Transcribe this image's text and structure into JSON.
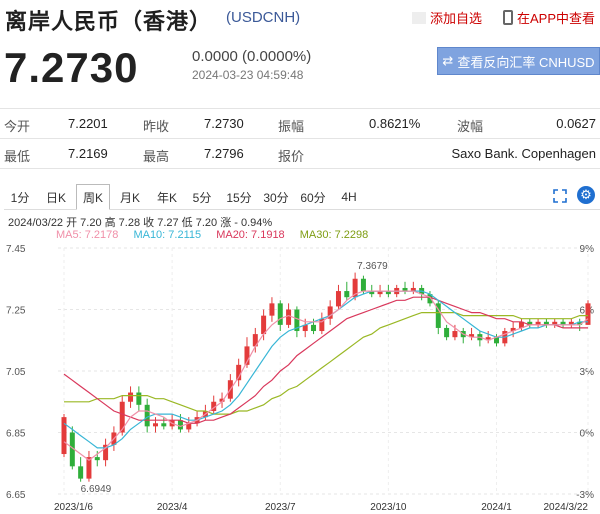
{
  "header": {
    "title": "离岸人民币（香港）",
    "code": "(USDCNH)",
    "add_favorite": "添加自选",
    "app_link": "在APP中查看",
    "price": "7.2730",
    "change": "0.0000 (0.0000%)",
    "time": "2024-03-23 04:59:48",
    "reverse_button": "查看反向汇率 CNHUSD"
  },
  "stats": {
    "row1": [
      {
        "label": "今开",
        "value": "7.2201"
      },
      {
        "label": "昨收",
        "value": "7.2730"
      },
      {
        "label": "振幅",
        "value": "0.8621%"
      },
      {
        "label": "波幅",
        "value": "0.0627"
      }
    ],
    "row2": [
      {
        "label": "最低",
        "value": "7.2169"
      },
      {
        "label": "最高",
        "value": "7.2796"
      },
      {
        "label": "报价",
        "value": "Saxo Bank. Copenhagen"
      }
    ]
  },
  "tabs": [
    "1分",
    "日K",
    "周K",
    "月K",
    "年K",
    "5分",
    "15分",
    "30分",
    "60分",
    "4H"
  ],
  "active_tab": "周K",
  "info": {
    "ohlc": "2024/03/22  开 7.20 高 7.28 收 7.27 低 7.20 涨 - 0.94%",
    "ma5": "MA5: 7.2178",
    "ma10": "MA10: 7.2115",
    "ma20": "MA20: 7.1918",
    "ma30": "MA30: 7.2298"
  },
  "colors": {
    "up": "#e33b3b",
    "down": "#2fae3a",
    "ma5": "#f08fa8",
    "ma10": "#38b6d6",
    "ma20": "#d9385c",
    "ma30": "#9ab825",
    "accent": "#7fa3df"
  },
  "chart_data": {
    "type": "candlestick",
    "ylim": [
      6.65,
      7.45
    ],
    "y_ticks": [
      "7.45",
      "7.25",
      "7.05",
      "6.85",
      "6.65"
    ],
    "y_ticks_right": [
      "9%",
      "6%",
      "3%",
      "0%",
      "-3%"
    ],
    "x_ticks": [
      {
        "label": "2023/1/6",
        "index": 0
      },
      {
        "label": "2023/4",
        "index": 13
      },
      {
        "label": "2023/7",
        "index": 26
      },
      {
        "label": "2023/10",
        "index": 39
      },
      {
        "label": "2024/1",
        "index": 52
      },
      {
        "label": "2024/3/22",
        "index": 63
      }
    ],
    "annotations": [
      {
        "text": "7.3679",
        "index": 35,
        "value": 7.3679
      },
      {
        "text": "6.6949",
        "index": 2,
        "value": 6.6949
      }
    ],
    "candles": [
      [
        6.78,
        6.9,
        6.91,
        6.77
      ],
      [
        6.85,
        6.74,
        6.87,
        6.73
      ],
      [
        6.74,
        6.7,
        6.77,
        6.69
      ],
      [
        6.7,
        6.77,
        6.79,
        6.69
      ],
      [
        6.77,
        6.76,
        6.79,
        6.74
      ],
      [
        6.76,
        6.81,
        6.83,
        6.74
      ],
      [
        6.81,
        6.85,
        6.87,
        6.79
      ],
      [
        6.85,
        6.95,
        6.97,
        6.84
      ],
      [
        6.95,
        6.98,
        7.0,
        6.93
      ],
      [
        6.98,
        6.94,
        7.0,
        6.92
      ],
      [
        6.94,
        6.87,
        6.96,
        6.85
      ],
      [
        6.87,
        6.88,
        6.9,
        6.85
      ],
      [
        6.88,
        6.87,
        6.9,
        6.86
      ],
      [
        6.87,
        6.89,
        6.91,
        6.86
      ],
      [
        6.89,
        6.86,
        6.91,
        6.85
      ],
      [
        6.86,
        6.88,
        6.9,
        6.85
      ],
      [
        6.88,
        6.9,
        6.92,
        6.87
      ],
      [
        6.9,
        6.92,
        6.94,
        6.89
      ],
      [
        6.92,
        6.95,
        6.97,
        6.91
      ],
      [
        6.95,
        6.96,
        6.98,
        6.93
      ],
      [
        6.96,
        7.02,
        7.04,
        6.95
      ],
      [
        7.02,
        7.07,
        7.09,
        7.0
      ],
      [
        7.07,
        7.13,
        7.16,
        7.06
      ],
      [
        7.13,
        7.17,
        7.19,
        7.11
      ],
      [
        7.17,
        7.23,
        7.25,
        7.15
      ],
      [
        7.23,
        7.27,
        7.29,
        7.21
      ],
      [
        7.27,
        7.2,
        7.28,
        7.18
      ],
      [
        7.2,
        7.25,
        7.27,
        7.19
      ],
      [
        7.25,
        7.18,
        7.26,
        7.16
      ],
      [
        7.18,
        7.2,
        7.22,
        7.16
      ],
      [
        7.2,
        7.18,
        7.22,
        7.17
      ],
      [
        7.18,
        7.22,
        7.24,
        7.17
      ],
      [
        7.22,
        7.26,
        7.28,
        7.2
      ],
      [
        7.26,
        7.31,
        7.33,
        7.25
      ],
      [
        7.31,
        7.29,
        7.34,
        7.28
      ],
      [
        7.29,
        7.35,
        7.37,
        7.28
      ],
      [
        7.35,
        7.31,
        7.36,
        7.3
      ],
      [
        7.31,
        7.3,
        7.33,
        7.29
      ],
      [
        7.3,
        7.31,
        7.33,
        7.29
      ],
      [
        7.31,
        7.3,
        7.33,
        7.29
      ],
      [
        7.3,
        7.32,
        7.33,
        7.29
      ],
      [
        7.32,
        7.31,
        7.34,
        7.3
      ],
      [
        7.31,
        7.32,
        7.34,
        7.3
      ],
      [
        7.32,
        7.3,
        7.33,
        7.28
      ],
      [
        7.3,
        7.27,
        7.31,
        7.26
      ],
      [
        7.27,
        7.19,
        7.28,
        7.17
      ],
      [
        7.19,
        7.16,
        7.2,
        7.15
      ],
      [
        7.16,
        7.18,
        7.2,
        7.15
      ],
      [
        7.18,
        7.16,
        7.19,
        7.14
      ],
      [
        7.16,
        7.17,
        7.19,
        7.15
      ],
      [
        7.17,
        7.15,
        7.18,
        7.13
      ],
      [
        7.15,
        7.16,
        7.18,
        7.14
      ],
      [
        7.16,
        7.14,
        7.17,
        7.13
      ],
      [
        7.14,
        7.18,
        7.19,
        7.13
      ],
      [
        7.18,
        7.19,
        7.21,
        7.16
      ],
      [
        7.19,
        7.21,
        7.22,
        7.18
      ],
      [
        7.21,
        7.2,
        7.22,
        7.19
      ],
      [
        7.2,
        7.21,
        7.22,
        7.19
      ],
      [
        7.21,
        7.2,
        7.22,
        7.19
      ],
      [
        7.2,
        7.21,
        7.22,
        7.19
      ],
      [
        7.21,
        7.2,
        7.22,
        7.19
      ],
      [
        7.2,
        7.21,
        7.22,
        7.19
      ],
      [
        7.21,
        7.2,
        7.22,
        7.18
      ],
      [
        7.2,
        7.27,
        7.28,
        7.2
      ]
    ],
    "ma5": [
      6.82,
      6.8,
      6.78,
      6.76,
      6.78,
      6.8,
      6.83,
      6.86,
      6.9,
      6.92,
      6.92,
      6.91,
      6.9,
      6.88,
      6.87,
      6.88,
      6.89,
      6.91,
      6.93,
      6.95,
      6.99,
      7.03,
      7.08,
      7.13,
      7.17,
      7.2,
      7.22,
      7.23,
      7.22,
      7.21,
      7.21,
      7.21,
      7.23,
      7.25,
      7.28,
      7.3,
      7.31,
      7.31,
      7.31,
      7.31,
      7.31,
      7.31,
      7.31,
      7.3,
      7.29,
      7.25,
      7.21,
      7.19,
      7.17,
      7.16,
      7.16,
      7.15,
      7.16,
      7.17,
      7.18,
      7.19,
      7.2,
      7.2,
      7.2,
      7.2,
      7.2,
      7.2,
      7.2,
      7.22
    ],
    "ma10": [
      6.88,
      6.86,
      6.84,
      6.82,
      6.8,
      6.8,
      6.81,
      6.83,
      6.86,
      6.88,
      6.9,
      6.91,
      6.91,
      6.91,
      6.9,
      6.89,
      6.89,
      6.9,
      6.91,
      6.92,
      6.94,
      6.97,
      7.01,
      7.05,
      7.09,
      7.13,
      7.16,
      7.18,
      7.19,
      7.2,
      7.21,
      7.22,
      7.23,
      7.25,
      7.27,
      7.29,
      7.3,
      7.31,
      7.31,
      7.31,
      7.31,
      7.31,
      7.31,
      7.31,
      7.3,
      7.28,
      7.26,
      7.24,
      7.22,
      7.2,
      7.18,
      7.17,
      7.16,
      7.16,
      7.17,
      7.18,
      7.19,
      7.19,
      7.2,
      7.2,
      7.2,
      7.2,
      7.21,
      7.21
    ],
    "ma20": [
      7.04,
      7.02,
      7.0,
      6.98,
      6.96,
      6.94,
      6.92,
      6.91,
      6.9,
      6.89,
      6.89,
      6.89,
      6.89,
      6.89,
      6.89,
      6.88,
      6.88,
      6.89,
      6.89,
      6.9,
      6.91,
      6.93,
      6.95,
      6.97,
      7.0,
      7.02,
      7.05,
      7.07,
      7.1,
      7.12,
      7.14,
      7.16,
      7.18,
      7.2,
      7.22,
      7.23,
      7.24,
      7.25,
      7.26,
      7.27,
      7.28,
      7.28,
      7.29,
      7.29,
      7.29,
      7.28,
      7.27,
      7.26,
      7.25,
      7.24,
      7.24,
      7.23,
      7.22,
      7.22,
      7.21,
      7.21,
      7.2,
      7.2,
      7.2,
      7.2,
      7.19,
      7.19,
      7.19,
      7.19
    ],
    "ma30": [
      6.95,
      6.95,
      6.95,
      6.95,
      6.96,
      6.96,
      6.96,
      6.97,
      6.97,
      6.97,
      6.97,
      6.96,
      6.96,
      6.95,
      6.94,
      6.93,
      6.92,
      6.92,
      6.91,
      6.91,
      6.91,
      6.92,
      6.92,
      6.93,
      6.94,
      6.96,
      6.97,
      6.99,
      7.0,
      7.02,
      7.04,
      7.06,
      7.08,
      7.1,
      7.12,
      7.14,
      7.16,
      7.17,
      7.19,
      7.2,
      7.21,
      7.22,
      7.23,
      7.24,
      7.24,
      7.24,
      7.24,
      7.24,
      7.23,
      7.23,
      7.23,
      7.23,
      7.23,
      7.23,
      7.23,
      7.22,
      7.22,
      7.22,
      7.22,
      7.22,
      7.22,
      7.22,
      7.23,
      7.23
    ]
  }
}
